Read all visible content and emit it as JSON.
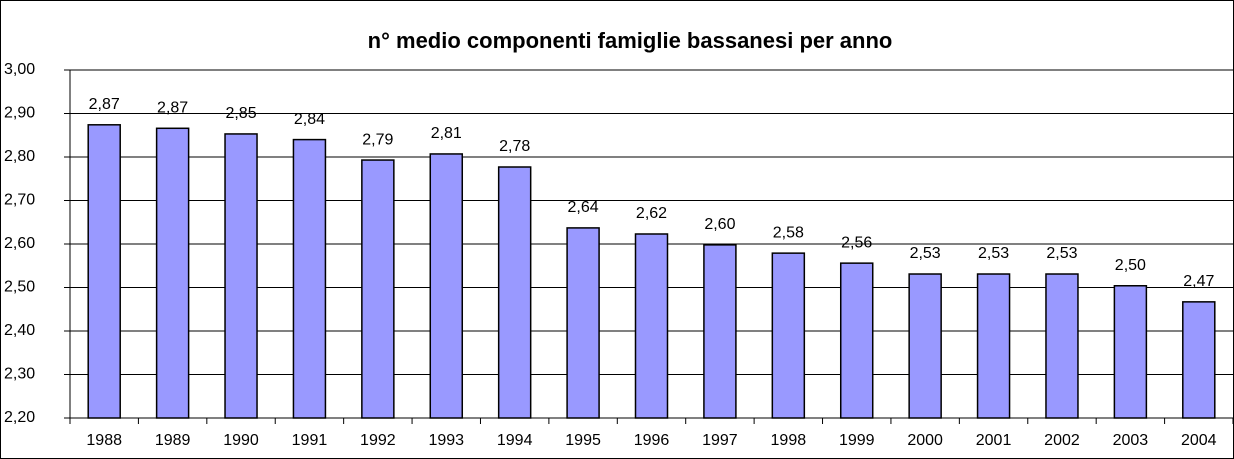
{
  "chart_data": {
    "type": "bar",
    "title": "n° medio componenti famiglie bassanesi per anno",
    "categories": [
      "1988",
      "1989",
      "1990",
      "1991",
      "1992",
      "1993",
      "1994",
      "1995",
      "1996",
      "1997",
      "1998",
      "1999",
      "2000",
      "2001",
      "2002",
      "2003",
      "2004"
    ],
    "values": [
      2.874,
      2.866,
      2.853,
      2.84,
      2.793,
      2.807,
      2.777,
      2.637,
      2.623,
      2.598,
      2.579,
      2.556,
      2.531,
      2.531,
      2.531,
      2.504,
      2.467
    ],
    "value_labels": [
      "2,87",
      "2,87",
      "2,85",
      "2,84",
      "2,79",
      "2,81",
      "2,78",
      "2,64",
      "2,62",
      "2,60",
      "2,58",
      "2,56",
      "2,53",
      "2,53",
      "2,53",
      "2,50",
      "2,47"
    ],
    "color": "#9999ff",
    "ylim": [
      2.2,
      3.0
    ],
    "yticks": [
      {
        "value": 2.2,
        "label": "2,20"
      },
      {
        "value": 2.3,
        "label": "2,30"
      },
      {
        "value": 2.4,
        "label": "2,40"
      },
      {
        "value": 2.5,
        "label": "2,50"
      },
      {
        "value": 2.6,
        "label": "2,60"
      },
      {
        "value": 2.7,
        "label": "2,70"
      },
      {
        "value": 2.8,
        "label": "2,80"
      },
      {
        "value": 2.9,
        "label": "2,90"
      },
      {
        "value": 3.0,
        "label": "3,00"
      }
    ],
    "grid": true
  }
}
